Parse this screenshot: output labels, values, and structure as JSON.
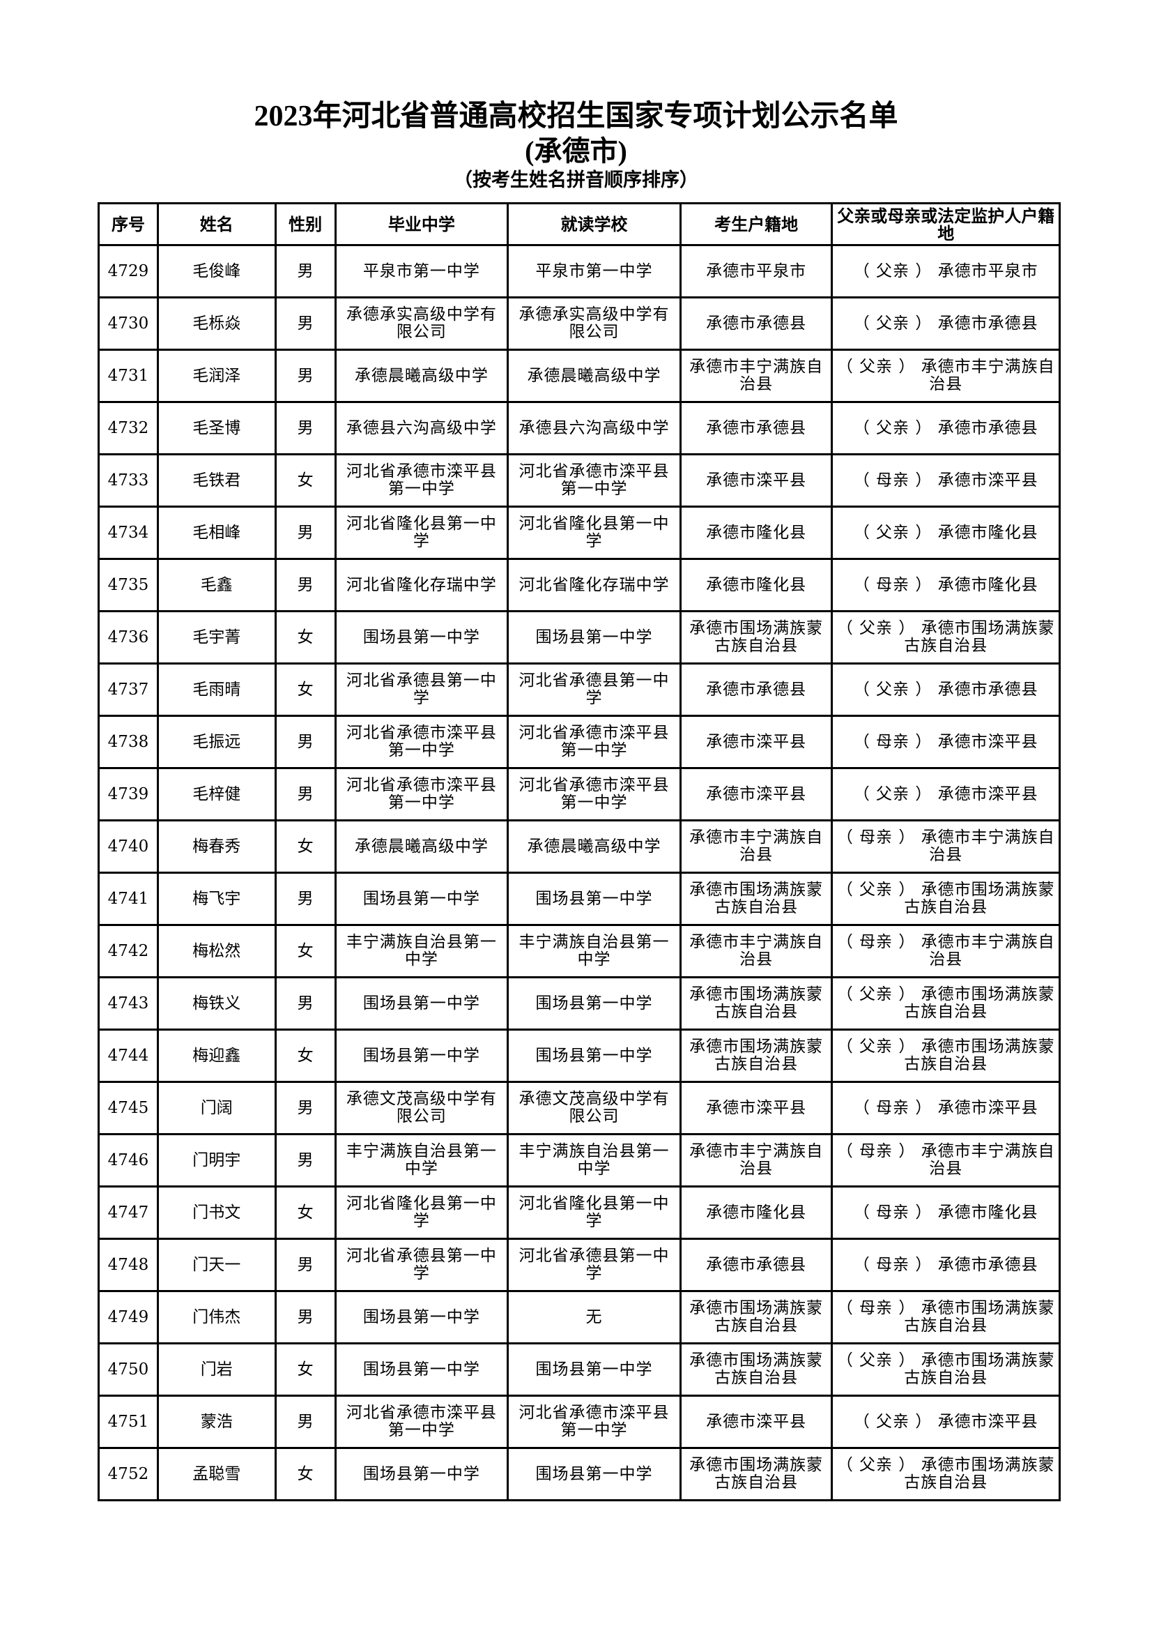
{
  "document": {
    "title": "2023年河北省普通高校招生国家专项计划公示名单",
    "subtitle": "(承德市)",
    "note": "（按考生姓名拼音顺序排序）"
  },
  "table": {
    "headers": [
      "序号",
      "姓名",
      "性别",
      "毕业中学",
      "就读学校",
      "考生户籍地",
      "父亲或母亲或法定监护人户籍地"
    ],
    "rows": [
      [
        "4729",
        "毛俊峰",
        "男",
        "平泉市第一中学",
        "平泉市第一中学",
        "承德市平泉市",
        "（ 父亲 ） 承德市平泉市"
      ],
      [
        "4730",
        "毛栎焱",
        "男",
        "承德承实高级中学有限公司",
        "承德承实高级中学有限公司",
        "承德市承德县",
        "（ 父亲 ） 承德市承德县"
      ],
      [
        "4731",
        "毛润泽",
        "男",
        "承德晨曦高级中学",
        "承德晨曦高级中学",
        "承德市丰宁满族自治县",
        "（ 父亲 ） 承德市丰宁满族自治县"
      ],
      [
        "4732",
        "毛圣博",
        "男",
        "承德县六沟高级中学",
        "承德县六沟高级中学",
        "承德市承德县",
        "（ 父亲 ） 承德市承德县"
      ],
      [
        "4733",
        "毛铁君",
        "女",
        "河北省承德市滦平县第一中学",
        "河北省承德市滦平县第一中学",
        "承德市滦平县",
        "（ 母亲 ） 承德市滦平县"
      ],
      [
        "4734",
        "毛相峰",
        "男",
        "河北省隆化县第一中学",
        "河北省隆化县第一中学",
        "承德市隆化县",
        "（ 父亲 ） 承德市隆化县"
      ],
      [
        "4735",
        "毛鑫",
        "男",
        "河北省隆化存瑞中学",
        "河北省隆化存瑞中学",
        "承德市隆化县",
        "（ 母亲 ） 承德市隆化县"
      ],
      [
        "4736",
        "毛宇菁",
        "女",
        "围场县第一中学",
        "围场县第一中学",
        "承德市围场满族蒙古族自治县",
        "（ 父亲 ） 承德市围场满族蒙古族自治县"
      ],
      [
        "4737",
        "毛雨晴",
        "女",
        "河北省承德县第一中学",
        "河北省承德县第一中学",
        "承德市承德县",
        "（ 父亲 ） 承德市承德县"
      ],
      [
        "4738",
        "毛振远",
        "男",
        "河北省承德市滦平县第一中学",
        "河北省承德市滦平县第一中学",
        "承德市滦平县",
        "（ 母亲 ） 承德市滦平县"
      ],
      [
        "4739",
        "毛梓健",
        "男",
        "河北省承德市滦平县第一中学",
        "河北省承德市滦平县第一中学",
        "承德市滦平县",
        "（ 父亲 ） 承德市滦平县"
      ],
      [
        "4740",
        "梅春秀",
        "女",
        "承德晨曦高级中学",
        "承德晨曦高级中学",
        "承德市丰宁满族自治县",
        "（ 母亲 ） 承德市丰宁满族自治县"
      ],
      [
        "4741",
        "梅飞宇",
        "男",
        "围场县第一中学",
        "围场县第一中学",
        "承德市围场满族蒙古族自治县",
        "（ 父亲 ） 承德市围场满族蒙古族自治县"
      ],
      [
        "4742",
        "梅松然",
        "女",
        "丰宁满族自治县第一中学",
        "丰宁满族自治县第一中学",
        "承德市丰宁满族自治县",
        "（ 母亲 ） 承德市丰宁满族自治县"
      ],
      [
        "4743",
        "梅铁义",
        "男",
        "围场县第一中学",
        "围场县第一中学",
        "承德市围场满族蒙古族自治县",
        "（ 父亲 ） 承德市围场满族蒙古族自治县"
      ],
      [
        "4744",
        "梅迎鑫",
        "女",
        "围场县第一中学",
        "围场县第一中学",
        "承德市围场满族蒙古族自治县",
        "（ 父亲 ） 承德市围场满族蒙古族自治县"
      ],
      [
        "4745",
        "门阔",
        "男",
        "承德文茂高级中学有限公司",
        "承德文茂高级中学有限公司",
        "承德市滦平县",
        "（ 母亲 ） 承德市滦平县"
      ],
      [
        "4746",
        "门明宇",
        "男",
        "丰宁满族自治县第一中学",
        "丰宁满族自治县第一中学",
        "承德市丰宁满族自治县",
        "（ 母亲 ） 承德市丰宁满族自治县"
      ],
      [
        "4747",
        "门书文",
        "女",
        "河北省隆化县第一中学",
        "河北省隆化县第一中学",
        "承德市隆化县",
        "（ 母亲 ） 承德市隆化县"
      ],
      [
        "4748",
        "门天一",
        "男",
        "河北省承德县第一中学",
        "河北省承德县第一中学",
        "承德市承德县",
        "（ 母亲 ） 承德市承德县"
      ],
      [
        "4749",
        "门伟杰",
        "男",
        "围场县第一中学",
        "无",
        "承德市围场满族蒙古族自治县",
        "（ 母亲 ） 承德市围场满族蒙古族自治县"
      ],
      [
        "4750",
        "门岩",
        "女",
        "围场县第一中学",
        "围场县第一中学",
        "承德市围场满族蒙古族自治县",
        "（ 父亲 ） 承德市围场满族蒙古族自治县"
      ],
      [
        "4751",
        "蒙浩",
        "男",
        "河北省承德市滦平县第一中学",
        "河北省承德市滦平县第一中学",
        "承德市滦平县",
        "（ 父亲 ） 承德市滦平县"
      ],
      [
        "4752",
        "孟聪雪",
        "女",
        "围场县第一中学",
        "围场县第一中学",
        "承德市围场满族蒙古族自治县",
        "（ 父亲 ） 承德市围场满族蒙古族自治县"
      ]
    ]
  }
}
